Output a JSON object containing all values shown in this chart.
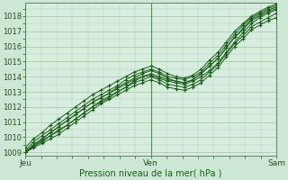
{
  "title": "",
  "xlabel": "Pression niveau de la mer( hPa )",
  "ylabel": "",
  "bg_color": "#cce8d4",
  "plot_bg_color": "#d8ede0",
  "grid_color": "#aaccaa",
  "line_color": "#1a5c1a",
  "x_ticks_labels": [
    "Jeu",
    "Ven",
    "Sam"
  ],
  "x_ticks_pos": [
    0.0,
    0.5,
    1.0
  ],
  "ylim": [
    1008.8,
    1018.9
  ],
  "xlim": [
    0.0,
    1.0
  ],
  "yticks": [
    1009,
    1010,
    1011,
    1012,
    1013,
    1014,
    1015,
    1016,
    1017,
    1018
  ],
  "series": [
    [
      1009.0,
      1009.4,
      1009.8,
      1010.1,
      1010.5,
      1010.8,
      1011.2,
      1011.6,
      1012.0,
      1012.3,
      1012.6,
      1013.0,
      1013.3,
      1013.7,
      1014.0,
      1014.1,
      1013.9,
      1013.7,
      1013.6,
      1013.5,
      1013.7,
      1014.0,
      1014.4,
      1014.9,
      1015.6,
      1016.3,
      1016.9,
      1017.5,
      1017.9,
      1018.2,
      1018.4
    ],
    [
      1009.0,
      1009.5,
      1009.9,
      1010.3,
      1010.7,
      1011.1,
      1011.5,
      1011.9,
      1012.3,
      1012.6,
      1012.9,
      1013.3,
      1013.6,
      1013.9,
      1014.2,
      1014.4,
      1014.2,
      1013.9,
      1013.7,
      1013.6,
      1013.8,
      1014.2,
      1014.7,
      1015.2,
      1015.9,
      1016.6,
      1017.2,
      1017.8,
      1018.1,
      1018.4,
      1018.6
    ],
    [
      1009.1,
      1009.7,
      1010.1,
      1010.5,
      1010.9,
      1011.3,
      1011.7,
      1012.1,
      1012.5,
      1012.8,
      1013.1,
      1013.4,
      1013.8,
      1014.1,
      1014.3,
      1014.5,
      1014.3,
      1014.0,
      1013.9,
      1013.8,
      1014.0,
      1014.3,
      1014.9,
      1015.4,
      1016.1,
      1016.8,
      1017.4,
      1017.9,
      1018.2,
      1018.5,
      1018.7
    ],
    [
      1009.3,
      1009.9,
      1010.3,
      1010.8,
      1011.2,
      1011.6,
      1012.0,
      1012.4,
      1012.8,
      1013.1,
      1013.4,
      1013.7,
      1014.0,
      1014.3,
      1014.5,
      1014.7,
      1014.5,
      1014.2,
      1014.0,
      1013.9,
      1014.1,
      1014.5,
      1015.1,
      1015.6,
      1016.3,
      1017.0,
      1017.5,
      1018.0,
      1018.3,
      1018.6,
      1018.8
    ],
    [
      1009.0,
      1009.5,
      1009.9,
      1010.3,
      1010.7,
      1011.1,
      1011.5,
      1011.9,
      1012.3,
      1012.6,
      1012.9,
      1013.2,
      1013.5,
      1013.8,
      1014.0,
      1014.2,
      1014.0,
      1013.8,
      1013.7,
      1013.6,
      1013.8,
      1014.2,
      1014.7,
      1015.2,
      1015.9,
      1016.6,
      1017.1,
      1017.7,
      1018.0,
      1018.3,
      1018.5
    ],
    [
      1009.0,
      1009.4,
      1009.7,
      1010.1,
      1010.4,
      1010.8,
      1011.2,
      1011.6,
      1012.0,
      1012.4,
      1012.7,
      1013.0,
      1013.3,
      1013.6,
      1013.8,
      1014.0,
      1013.8,
      1013.5,
      1013.4,
      1013.3,
      1013.5,
      1013.8,
      1014.3,
      1014.8,
      1015.5,
      1016.2,
      1016.7,
      1017.3,
      1017.6,
      1017.9,
      1018.2
    ],
    [
      1009.0,
      1009.3,
      1009.6,
      1009.9,
      1010.2,
      1010.6,
      1011.0,
      1011.4,
      1011.8,
      1012.2,
      1012.5,
      1012.8,
      1013.1,
      1013.4,
      1013.6,
      1013.8,
      1013.6,
      1013.3,
      1013.2,
      1013.1,
      1013.3,
      1013.6,
      1014.1,
      1014.6,
      1015.3,
      1016.0,
      1016.5,
      1017.1,
      1017.4,
      1017.7,
      1017.9
    ]
  ]
}
